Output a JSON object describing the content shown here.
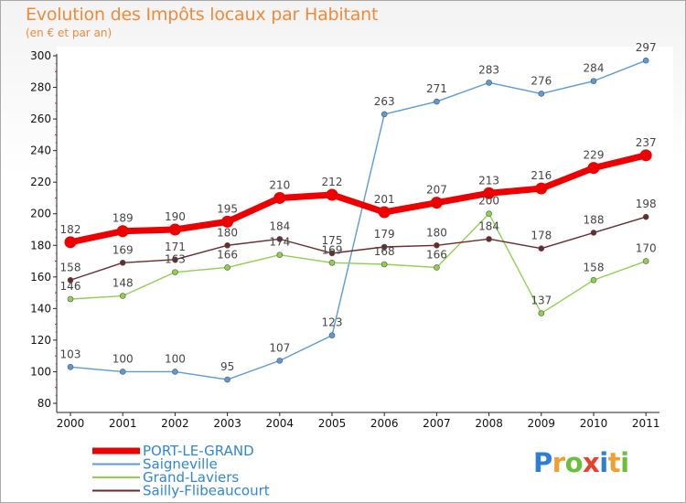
{
  "header": {
    "title": "Evolution des Impôts locaux par Habitant",
    "subtitle": "(en € et par an)"
  },
  "logo": {
    "text": "Proxiti",
    "letters": [
      {
        "ch": "P",
        "color": "#2e7dd7"
      },
      {
        "ch": "r",
        "color": "#f0a030"
      },
      {
        "ch": "o",
        "color": "#6cbf3c"
      },
      {
        "ch": "x",
        "color": "#e8402a"
      },
      {
        "ch": "i",
        "color": "#2e7dd7"
      },
      {
        "ch": "t",
        "color": "#f0a030"
      },
      {
        "ch": "i",
        "color": "#6cbf3c"
      }
    ]
  },
  "chart_data": {
    "type": "line",
    "title": "Evolution des Impôts locaux par Habitant",
    "subtitle": "(en € et par an)",
    "xlabel": "",
    "ylabel": "",
    "categories": [
      "2000",
      "2001",
      "2002",
      "2003",
      "2004",
      "2005",
      "2006",
      "2007",
      "2008",
      "2009",
      "2010",
      "2011"
    ],
    "ylim": [
      80,
      300
    ],
    "yticks": [
      80,
      100,
      120,
      140,
      160,
      180,
      200,
      220,
      240,
      260,
      280,
      300
    ],
    "grid": false,
    "legend": "bottom-left",
    "series": [
      {
        "name": "PORT-LE-GRAND",
        "color": "#ee0000",
        "values": [
          182,
          189,
          190,
          195,
          210,
          212,
          201,
          207,
          213,
          216,
          229,
          237
        ],
        "labels": [
          "182",
          "189",
          "190",
          "195",
          "210",
          "212",
          "201",
          "207",
          "213",
          "216",
          "229",
          "237"
        ]
      },
      {
        "name": "Saigneville",
        "color": "#5b9bd5",
        "values": [
          103,
          100,
          100,
          95,
          107,
          123,
          263,
          271,
          283,
          276,
          284,
          297
        ],
        "labels": [
          "103",
          "100",
          "100",
          "95",
          "107",
          "123",
          "263",
          "271",
          "283",
          "276",
          "284",
          "297"
        ]
      },
      {
        "name": "Grand-Laviers",
        "color": "#8fd14f",
        "values": [
          146,
          148,
          163,
          166,
          174,
          169,
          168,
          166,
          200,
          137,
          158,
          170
        ],
        "labels": [
          "146",
          "148",
          "163",
          "166",
          "174",
          "169",
          "168",
          "166",
          "200",
          "137",
          "158",
          "170"
        ]
      },
      {
        "name": "Sailly-Flibeaucourt",
        "color": "#6b2a2a",
        "values": [
          158,
          169,
          171,
          180,
          184,
          175,
          179,
          180,
          184,
          178,
          188,
          198
        ],
        "labels": [
          "158",
          "169",
          "171",
          "180",
          "184",
          "175",
          "179",
          "180",
          "184",
          "178",
          "188",
          "198"
        ]
      }
    ]
  }
}
